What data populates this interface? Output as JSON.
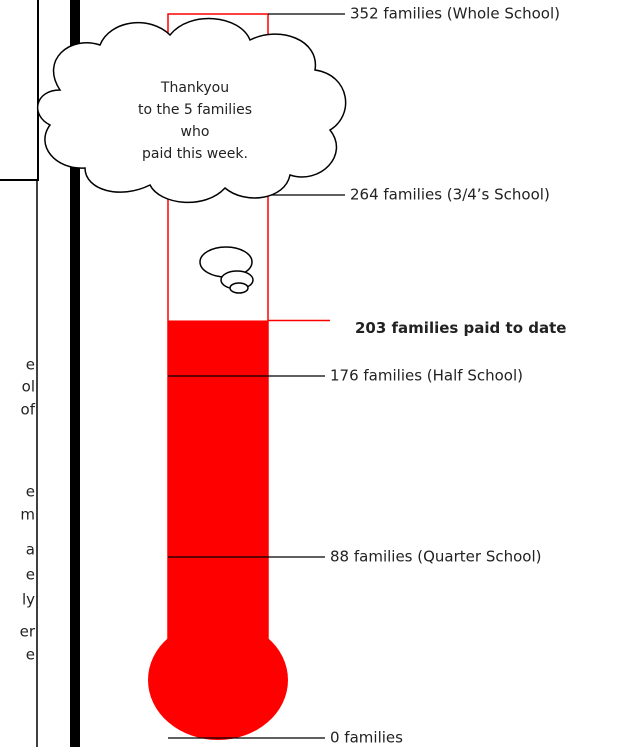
{
  "chart_data": {
    "type": "thermometer",
    "value": 203,
    "value_label": "203 families paid to date",
    "color": "#ff0000",
    "ylim": [
      0,
      352
    ],
    "yticks": [
      {
        "value": 0,
        "label": "0 families"
      },
      {
        "value": 88,
        "label": "88 families (Quarter School)"
      },
      {
        "value": 176,
        "label": "176 families (Half School)"
      },
      {
        "value": 264,
        "label": "264 families (3/4’s School)"
      },
      {
        "value": 352,
        "label": "352 families (Whole School)"
      }
    ],
    "annotation": [
      "Thankyou",
      "to the 5  families",
      "who",
      "paid this week."
    ]
  },
  "side_text": [
    "e",
    "ol",
    "of",
    "e",
    "m",
    "a",
    "e",
    "ly",
    "er",
    "e"
  ]
}
